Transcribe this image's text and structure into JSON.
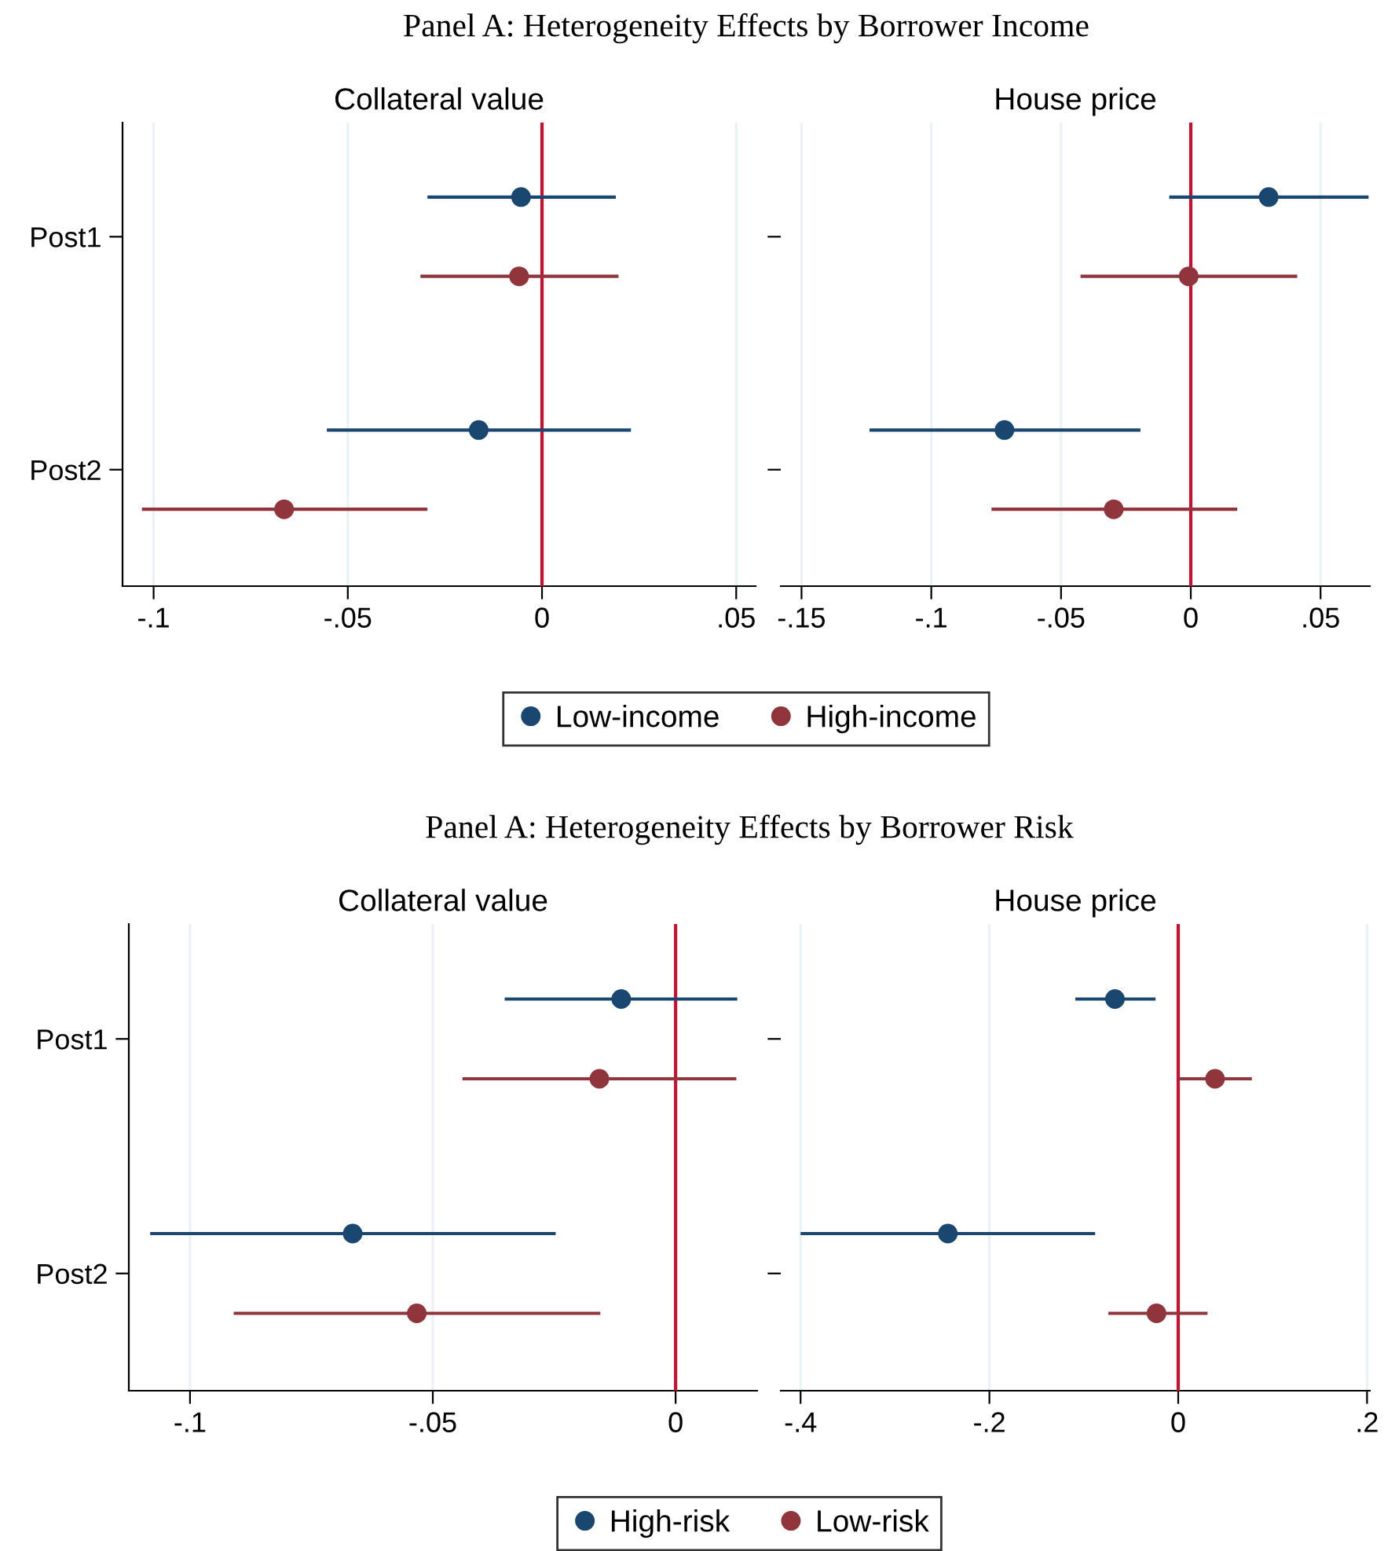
{
  "chart_data": [
    {
      "type": "scatter",
      "orientation": "horizontal",
      "subtitle": "Panel A: Heterogeneity Effects by Borrower Income",
      "title": "Collateral value",
      "categories": [
        "Post1",
        "Post2"
      ],
      "series": [
        {
          "name": "Low-income",
          "color": "#1a476f",
          "values": [
            -0.0054,
            -0.0163
          ],
          "errors": [
            [
              -0.0295,
              0.019
            ],
            [
              -0.0554,
              0.0229
            ]
          ]
        },
        {
          "name": "High-income",
          "color": "#90353b",
          "values": [
            -0.0059,
            -0.0664
          ],
          "errors": [
            [
              -0.0313,
              0.0197
            ],
            [
              -0.103,
              -0.0295
            ]
          ]
        }
      ],
      "xlim": [
        -0.108,
        0.055
      ],
      "xticks": [
        {
          "value": -0.1,
          "label": "-.1"
        },
        {
          "value": -0.05,
          "label": "-.05"
        },
        0,
        {
          "value": 0.05,
          "label": ".05"
        }
      ],
      "ref_lines": [
        {
          "axis": "x",
          "value": 0,
          "color": "#c8102e"
        }
      ],
      "grid": "x",
      "marker": "circle",
      "legend": "bottom"
    },
    {
      "type": "scatter",
      "orientation": "horizontal",
      "title": "House price",
      "categories": [
        null,
        null
      ],
      "series": [
        {
          "color": "#1a476f",
          "values": [
            0.03,
            -0.0718
          ],
          "errors": [
            [
              -0.0083,
              0.0685
            ],
            [
              -0.1238,
              -0.0194
            ]
          ]
        },
        {
          "color": "#90353b",
          "values": [
            -0.0008,
            -0.0297
          ],
          "errors": [
            [
              -0.0425,
              0.041
            ],
            [
              -0.0768,
              0.0179
            ]
          ]
        }
      ],
      "xlim": [
        -0.158,
        0.069
      ],
      "xticks": [
        {
          "value": -0.15,
          "label": "-.15"
        },
        {
          "value": -0.1,
          "label": "-.1"
        },
        {
          "value": -0.05,
          "label": "-.05"
        },
        0,
        {
          "value": 0.05,
          "label": ".05"
        }
      ],
      "ref_lines": [
        {
          "axis": "x",
          "value": 0,
          "color": "#c8102e"
        }
      ],
      "grid": "x",
      "marker": "circle",
      "tick_labels": "x"
    },
    {
      "type": "scatter",
      "orientation": "horizontal",
      "subtitle": "Panel A: Heterogeneity Effects by Borrower Risk",
      "title": "Collateral value",
      "categories": [
        "Post1",
        "Post2"
      ],
      "series": [
        {
          "name": "High-risk",
          "color": "#1a476f",
          "values": [
            -0.0112,
            -0.0665
          ],
          "errors": [
            [
              -0.0352,
              0.0127
            ],
            [
              -0.1082,
              -0.0247
            ]
          ]
        },
        {
          "name": "Low-risk",
          "color": "#90353b",
          "values": [
            -0.0157,
            -0.0533
          ],
          "errors": [
            [
              -0.0439,
              0.0125
            ],
            [
              -0.091,
              -0.0155
            ]
          ]
        }
      ],
      "xlim": [
        -0.1126,
        0.0168
      ],
      "xticks": [
        {
          "value": -0.1,
          "label": "-.1"
        },
        {
          "value": -0.05,
          "label": "-.05"
        },
        0
      ],
      "ref_lines": [
        {
          "axis": "x",
          "value": 0,
          "color": "#c8102e"
        }
      ],
      "grid": "x",
      "marker": "circle",
      "legend": "bottom"
    },
    {
      "type": "scatter",
      "orientation": "horizontal",
      "title": "House price",
      "categories": [
        null,
        null
      ],
      "series": [
        {
          "color": "#1a476f",
          "values": [
            -0.067,
            -0.244
          ],
          "errors": [
            [
              -0.109,
              -0.024
            ],
            [
              -0.4,
              -0.088
            ]
          ]
        },
        {
          "color": "#90353b",
          "values": [
            0.039,
            -0.023
          ],
          "errors": [
            [
              0.0,
              0.078
            ],
            [
              -0.074,
              0.031
            ]
          ]
        }
      ],
      "xlim": [
        -0.421,
        0.203
      ],
      "xticks": [
        {
          "value": -0.4,
          "label": "-.4"
        },
        {
          "value": -0.2,
          "label": "-.2"
        },
        0,
        {
          "value": 0.2,
          "label": ".2"
        }
      ],
      "ref_lines": [
        {
          "axis": "x",
          "value": 0,
          "color": "#c8102e"
        }
      ],
      "grid": "x",
      "marker": "circle",
      "tick_labels": "x"
    }
  ]
}
